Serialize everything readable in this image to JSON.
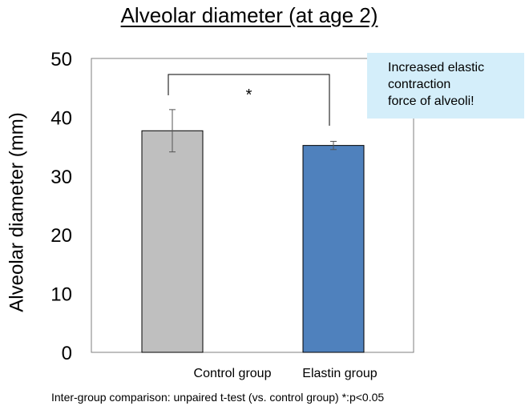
{
  "chart_data": {
    "type": "bar",
    "title": "Alveolar diameter (at age 2)",
    "ylabel": "Alveolar diameter (mm)",
    "xlabel": "",
    "ylim": [
      0,
      50
    ],
    "yticks": [
      0,
      10,
      20,
      30,
      40,
      50
    ],
    "categories": [
      "Control group",
      "Elastin group"
    ],
    "values": [
      37.7,
      35.2
    ],
    "errors": [
      3.6,
      0.7
    ],
    "colors": [
      "#bfbfbf",
      "#4f81bd"
    ],
    "grid": false,
    "significance": {
      "between": [
        0,
        1
      ],
      "label": "*"
    },
    "callout": "Increased elastic\ncontraction\nforce of alveoli!",
    "footnote": "Inter-group comparison: unpaired t-test (vs. control group) *:p<0.05"
  }
}
